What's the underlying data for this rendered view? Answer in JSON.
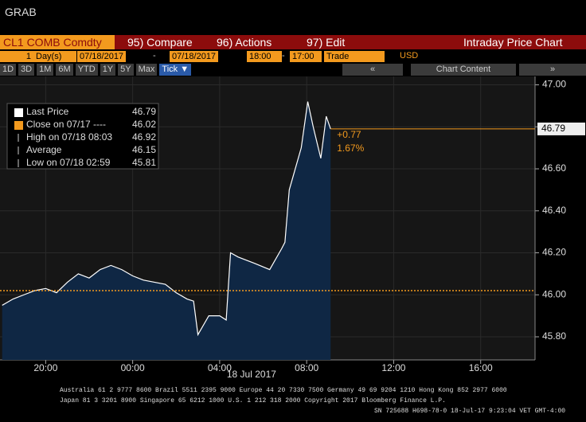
{
  "header": {
    "title": "GRAB"
  },
  "toolbar": {
    "security": "CL1 COMB Comdty",
    "compare": "95) Compare",
    "actions": "96) Actions",
    "edit": "97) Edit",
    "view": "Intraday Price Chart",
    "period_count": "1",
    "period_unit": "Day(s)",
    "start_date": "07/18/2017",
    "dash": "-",
    "end_date": "07/18/2017",
    "start_time": "18:00",
    "end_time": "17:00",
    "field": "Trade",
    "currency": "USD",
    "ranges": [
      "1D",
      "3D",
      "1M",
      "6M",
      "YTD",
      "1Y",
      "5Y",
      "Max",
      "Tick ▼"
    ],
    "prev": "«",
    "chart_content": "Chart Content",
    "next": "»"
  },
  "chart_data": {
    "type": "area",
    "series": [
      {
        "name": "Last Price",
        "color": "#ffffff",
        "fill": "#0f2744",
        "x": [
          18.0,
          18.5,
          19.0,
          19.5,
          20.0,
          20.5,
          21.0,
          21.5,
          22.0,
          22.5,
          23.0,
          23.5,
          24.0,
          24.5,
          25.0,
          25.5,
          26.0,
          26.5,
          26.8,
          27.0,
          27.5,
          28.0,
          28.3,
          28.5,
          28.85,
          29.6,
          30.3,
          30.85,
          31.0,
          31.2,
          31.75,
          32.05,
          32.3,
          32.65,
          32.9,
          33.1
        ],
        "values": [
          45.95,
          45.98,
          46.0,
          46.02,
          46.03,
          46.01,
          46.06,
          46.1,
          46.08,
          46.12,
          46.14,
          46.12,
          46.09,
          46.07,
          46.06,
          46.05,
          46.01,
          45.98,
          45.97,
          45.81,
          45.9,
          45.9,
          45.88,
          46.2,
          46.18,
          46.15,
          46.12,
          46.22,
          46.25,
          46.5,
          46.7,
          46.92,
          46.8,
          46.65,
          46.85,
          46.79
        ]
      }
    ],
    "legend": [
      {
        "label": "Last Price",
        "value": 46.79,
        "color": "#ffffff"
      },
      {
        "label": "Close on 07/17 ----",
        "value": 46.02,
        "color": "#f39a1e"
      },
      {
        "label": "High on 07/18 08:03",
        "value": 46.92,
        "color": "#cccccc"
      },
      {
        "label": "Average",
        "value": 46.15,
        "color": "#cccccc"
      },
      {
        "label": "Low on 07/18 02:59",
        "value": 45.81,
        "color": "#cccccc"
      }
    ],
    "annotations": [
      "+0.77",
      "1.67%"
    ],
    "x_label": "18 Jul 2017",
    "xlim": [
      17.9,
      42.5
    ],
    "xticks": [
      {
        "value": 20,
        "label": "20:00"
      },
      {
        "value": 24,
        "label": "00:00"
      },
      {
        "value": 28,
        "label": "04:00"
      },
      {
        "value": 32,
        "label": "08:00"
      },
      {
        "value": 36,
        "label": "12:00"
      },
      {
        "value": 40,
        "label": "16:00"
      }
    ],
    "ylim": [
      45.69,
      47.04
    ],
    "yticks": [
      {
        "value": 45.8,
        "label": "45.80"
      },
      {
        "value": 46.0,
        "label": "46.00"
      },
      {
        "value": 46.2,
        "label": "46.20"
      },
      {
        "value": 46.4,
        "label": "46.40"
      },
      {
        "value": 46.6,
        "label": "46.60"
      },
      {
        "value": 46.8,
        "label": "46.80"
      },
      {
        "value": 47.0,
        "label": "47.00"
      }
    ],
    "grid": true
  },
  "footer": [
    "Australia 61 2 9777 8600 Brazil 5511 2395 9000 Europe 44 20 7330 7500 Germany 49 69 9204 1210 Hong Kong 852 2977 6000",
    "Japan 81 3 3201 8900       Singapore 65 6212 1000       U.S. 1 212 318 2000          Copyright 2017 Bloomberg Finance L.P.",
    "SN 725688 H698-78-0 18-Jul-17  9:23:04 VET  GMT-4:00"
  ]
}
